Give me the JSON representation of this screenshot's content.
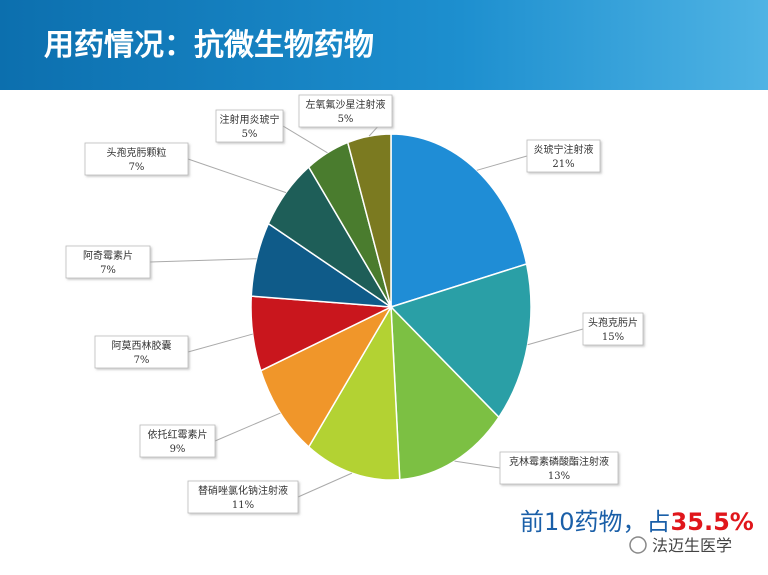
{
  "chart_data": {
    "type": "pie",
    "title": "用药情况：抗微生物药物",
    "categories": [
      "炎琥宁注射液",
      "头孢克肟片",
      "克林霉素磷酸酯注射液",
      "替硝唑氯化钠注射液",
      "依托红霉素片",
      "阿莫西林胶囊",
      "阿奇霉素片",
      "头孢克肟颗粒",
      "注射用炎琥宁",
      "左氧氟沙星注射液"
    ],
    "values": [
      21,
      15,
      13,
      11,
      9,
      7,
      7,
      7,
      5,
      5
    ],
    "value_labels": [
      "21%",
      "15%",
      "13%",
      "11%",
      "9%",
      "7%",
      "7%",
      "7%",
      "5%",
      "5%"
    ],
    "colors": [
      "#1f8dd6",
      "#2a9fa6",
      "#7cc043",
      "#b3d233",
      "#f0962a",
      "#c9161d",
      "#0f5b89",
      "#1e5e58",
      "#4a7c2e",
      "#7b7a20"
    ],
    "note": {
      "text": "前10药物，占",
      "highlight": "35.5%"
    },
    "source": "法迈生医学"
  }
}
